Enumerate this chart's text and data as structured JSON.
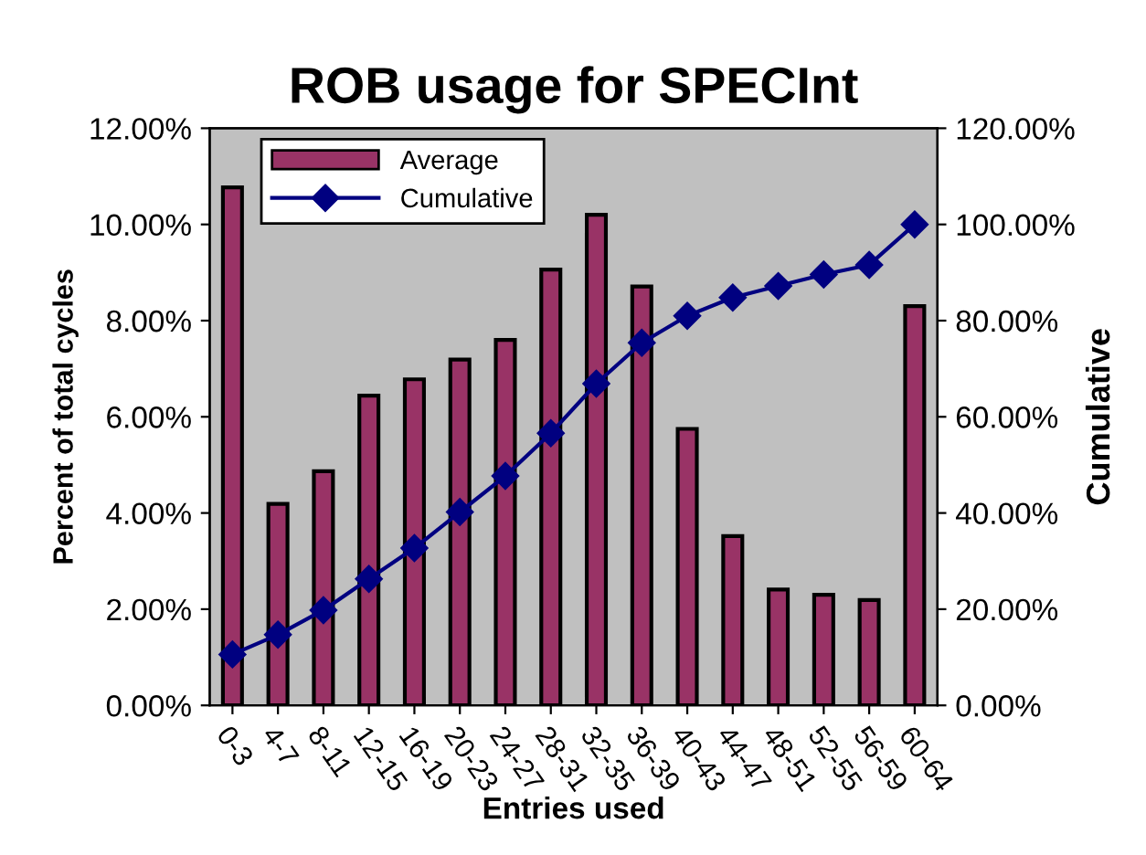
{
  "chart_data": {
    "type": "bar",
    "title": "ROB usage for SPECInt",
    "xlabel": "Entries used",
    "ylabel": "Percent of total cycles",
    "y2label": "Cumulative",
    "categories": [
      "0-3",
      "4-7",
      "8-11",
      "12-15",
      "16-19",
      "20-23",
      "24-27",
      "28-31",
      "32-35",
      "36-39",
      "40-43",
      "44-47",
      "48-51",
      "52-55",
      "56-59",
      "60-64"
    ],
    "series": [
      {
        "name": "Average",
        "color": "#993366",
        "values": [
          10.77,
          4.19,
          4.87,
          6.44,
          6.78,
          7.19,
          7.6,
          9.06,
          10.2,
          8.71,
          5.75,
          3.52,
          2.41,
          2.3,
          2.19,
          8.3
        ]
      },
      {
        "name": "Cumulative",
        "type": "line",
        "axis": "y2",
        "color": "#000080",
        "marker": "diamond",
        "values": [
          10.6,
          14.7,
          19.8,
          26.3,
          32.7,
          40.2,
          47.7,
          56.6,
          66.9,
          75.4,
          81.0,
          84.8,
          87.2,
          89.6,
          91.6,
          100
        ]
      }
    ],
    "ylim": [
      0,
      12
    ],
    "yticks": [
      {
        "value": 0,
        "label": "0.00%"
      },
      {
        "value": 2,
        "label": "2.00%"
      },
      {
        "value": 4,
        "label": "4.00%"
      },
      {
        "value": 6,
        "label": "6.00%"
      },
      {
        "value": 8,
        "label": "8.00%"
      },
      {
        "value": 10,
        "label": "10.00%"
      },
      {
        "value": 12,
        "label": "12.00%"
      }
    ],
    "y2lim": [
      0,
      120
    ],
    "y2ticks": [
      {
        "value": 0,
        "label": "0.00%"
      },
      {
        "value": 20,
        "label": "20.00%"
      },
      {
        "value": 40,
        "label": "40.00%"
      },
      {
        "value": 60,
        "label": "60.00%"
      },
      {
        "value": 80,
        "label": "80.00%"
      },
      {
        "value": 100,
        "label": "100.00%"
      },
      {
        "value": 120,
        "label": "120.00%"
      }
    ],
    "legend": "top",
    "grid": false
  }
}
